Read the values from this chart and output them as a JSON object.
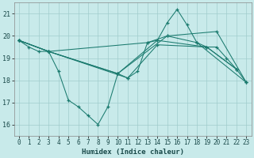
{
  "xlabel": "Humidex (Indice chaleur)",
  "bg_color": "#c8eaea",
  "line_color": "#1a7a6e",
  "grid_color": "#a0cccc",
  "xlim": [
    -0.5,
    23.5
  ],
  "ylim": [
    15.5,
    21.5
  ],
  "yticks": [
    16,
    17,
    18,
    19,
    20,
    21
  ],
  "xticks": [
    0,
    1,
    2,
    3,
    4,
    5,
    6,
    7,
    8,
    9,
    10,
    11,
    12,
    13,
    14,
    15,
    16,
    17,
    18,
    19,
    20,
    21,
    22,
    23
  ],
  "series": [
    {
      "x": [
        0,
        1,
        2,
        3,
        4,
        5,
        6,
        7,
        8,
        9,
        10,
        11,
        12,
        13,
        14,
        15,
        16,
        17,
        18,
        19,
        20,
        21,
        22,
        23
      ],
      "y": [
        19.8,
        19.5,
        19.3,
        19.3,
        18.4,
        17.1,
        16.8,
        16.4,
        16.0,
        16.8,
        18.3,
        18.1,
        18.4,
        19.7,
        19.8,
        20.6,
        21.2,
        20.5,
        19.7,
        19.5,
        19.5,
        19.0,
        18.5,
        17.9
      ]
    },
    {
      "x": [
        0,
        3,
        10,
        14,
        19,
        22
      ],
      "y": [
        19.8,
        19.3,
        18.3,
        19.8,
        19.5,
        18.5
      ]
    },
    {
      "x": [
        0,
        3,
        10,
        15,
        20,
        23
      ],
      "y": [
        19.8,
        19.3,
        18.3,
        20.0,
        20.2,
        17.9
      ]
    },
    {
      "x": [
        0,
        3,
        11,
        14,
        19,
        22
      ],
      "y": [
        19.8,
        19.3,
        18.1,
        19.6,
        19.5,
        18.5
      ]
    },
    {
      "x": [
        0,
        3,
        13,
        15,
        18,
        23
      ],
      "y": [
        19.8,
        19.3,
        19.7,
        20.0,
        19.7,
        17.9
      ]
    }
  ],
  "xlabel_fontsize": 6.5,
  "tick_fontsize": 5.5,
  "xlabel_fontweight": "bold",
  "xlabel_color": "#1a4a4a"
}
